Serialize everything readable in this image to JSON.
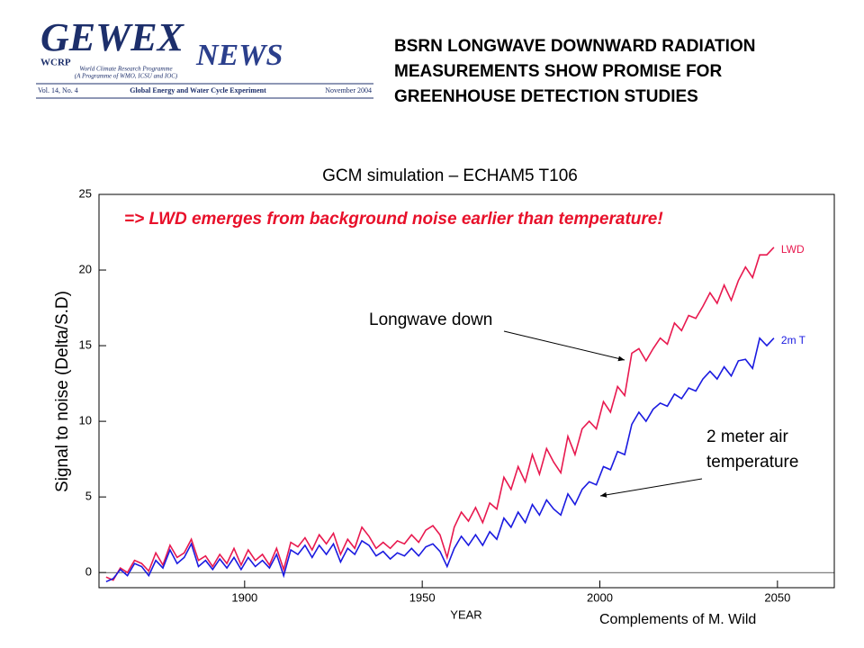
{
  "header": {
    "logo": "GEWEX",
    "news": "NEWS",
    "wcrp": "WCRP",
    "program": "World Climate Research Programme",
    "program_sub": "(A Programme of WMO, ICSU and IOC)",
    "volume": "Vol. 14, No. 4",
    "banner": "Global Energy and Water Cycle Experiment",
    "date": "November 2004",
    "headline": [
      "BSRN LONGWAVE DOWNWARD RADIATION",
      "MEASUREMENTS SHOW PROMISE FOR",
      "GREENHOUSE DETECTION STUDIES"
    ]
  },
  "chart_data": {
    "type": "line",
    "title": "GCM simulation – ECHAM5 T106",
    "annotation": "=> LWD emerges from background noise earlier than temperature!",
    "callouts": [
      "Longwave down",
      "2 meter air",
      "temperature"
    ],
    "xlabel": "YEAR",
    "ylabel": "Signal to noise  (Delta/S.D)",
    "xlim": [
      1859,
      2066
    ],
    "ylim": [
      -1,
      25
    ],
    "xticks": [
      1900,
      1950,
      2000,
      2050
    ],
    "yticks": [
      0,
      5,
      10,
      15,
      20,
      25
    ],
    "zero_line": true,
    "x": [
      1861,
      1863,
      1865,
      1867,
      1869,
      1871,
      1873,
      1875,
      1877,
      1879,
      1881,
      1883,
      1885,
      1887,
      1889,
      1891,
      1893,
      1895,
      1897,
      1899,
      1901,
      1903,
      1905,
      1907,
      1909,
      1911,
      1913,
      1915,
      1917,
      1919,
      1921,
      1923,
      1925,
      1927,
      1929,
      1931,
      1933,
      1935,
      1937,
      1939,
      1941,
      1943,
      1945,
      1947,
      1949,
      1951,
      1953,
      1955,
      1957,
      1959,
      1961,
      1963,
      1965,
      1967,
      1969,
      1971,
      1973,
      1975,
      1977,
      1979,
      1981,
      1983,
      1985,
      1987,
      1989,
      1991,
      1993,
      1995,
      1997,
      1999,
      2001,
      2003,
      2005,
      2007,
      2009,
      2011,
      2013,
      2015,
      2017,
      2019,
      2021,
      2023,
      2025,
      2027,
      2029,
      2031,
      2033,
      2035,
      2037,
      2039,
      2041,
      2043,
      2045,
      2047,
      2049
    ],
    "series": [
      {
        "name": "LWD",
        "color": "#e8194f",
        "values": [
          -0.3,
          -0.5,
          0.3,
          0.0,
          0.8,
          0.6,
          0.1,
          1.3,
          0.5,
          1.8,
          1.0,
          1.3,
          2.2,
          0.8,
          1.1,
          0.4,
          1.2,
          0.6,
          1.6,
          0.5,
          1.5,
          0.8,
          1.2,
          0.5,
          1.6,
          0.2,
          2.0,
          1.7,
          2.3,
          1.5,
          2.5,
          1.9,
          2.6,
          1.2,
          2.2,
          1.6,
          3.0,
          2.4,
          1.6,
          2.0,
          1.6,
          2.1,
          1.9,
          2.5,
          2.0,
          2.8,
          3.1,
          2.5,
          1.0,
          3.0,
          4.0,
          3.4,
          4.3,
          3.3,
          4.6,
          4.2,
          6.3,
          5.5,
          7.0,
          6.0,
          7.8,
          6.5,
          8.2,
          7.3,
          6.6,
          9.0,
          7.8,
          9.5,
          10.0,
          9.5,
          11.3,
          10.6,
          12.3,
          11.7,
          14.5,
          14.8,
          14.0,
          14.8,
          15.5,
          15.1,
          16.5,
          16.0,
          17.0,
          16.8,
          17.6,
          18.5,
          17.8,
          19.0,
          18.0,
          19.3,
          20.2,
          19.5,
          21.0,
          21.0,
          21.5
        ]
      },
      {
        "name": "2m T",
        "color": "#1a1ae0",
        "values": [
          -0.6,
          -0.4,
          0.2,
          -0.2,
          0.6,
          0.4,
          -0.2,
          0.8,
          0.3,
          1.5,
          0.6,
          1.0,
          1.9,
          0.4,
          0.8,
          0.2,
          0.9,
          0.3,
          1.0,
          0.2,
          1.0,
          0.4,
          0.8,
          0.3,
          1.2,
          -0.2,
          1.5,
          1.2,
          1.8,
          1.0,
          1.8,
          1.2,
          1.9,
          0.7,
          1.6,
          1.2,
          2.1,
          1.8,
          1.1,
          1.4,
          0.9,
          1.3,
          1.1,
          1.6,
          1.1,
          1.7,
          1.9,
          1.4,
          0.4,
          1.6,
          2.4,
          1.8,
          2.5,
          1.8,
          2.7,
          2.2,
          3.6,
          3.0,
          4.0,
          3.3,
          4.5,
          3.8,
          4.8,
          4.2,
          3.8,
          5.2,
          4.5,
          5.5,
          6.0,
          5.8,
          7.0,
          6.8,
          8.0,
          7.8,
          9.8,
          10.6,
          10.0,
          10.8,
          11.2,
          11.0,
          11.8,
          11.5,
          12.2,
          12.0,
          12.8,
          13.3,
          12.8,
          13.6,
          13.0,
          14.0,
          14.1,
          13.5,
          15.5,
          15.0,
          15.5
        ]
      }
    ]
  },
  "credit": "Complements of M. Wild"
}
